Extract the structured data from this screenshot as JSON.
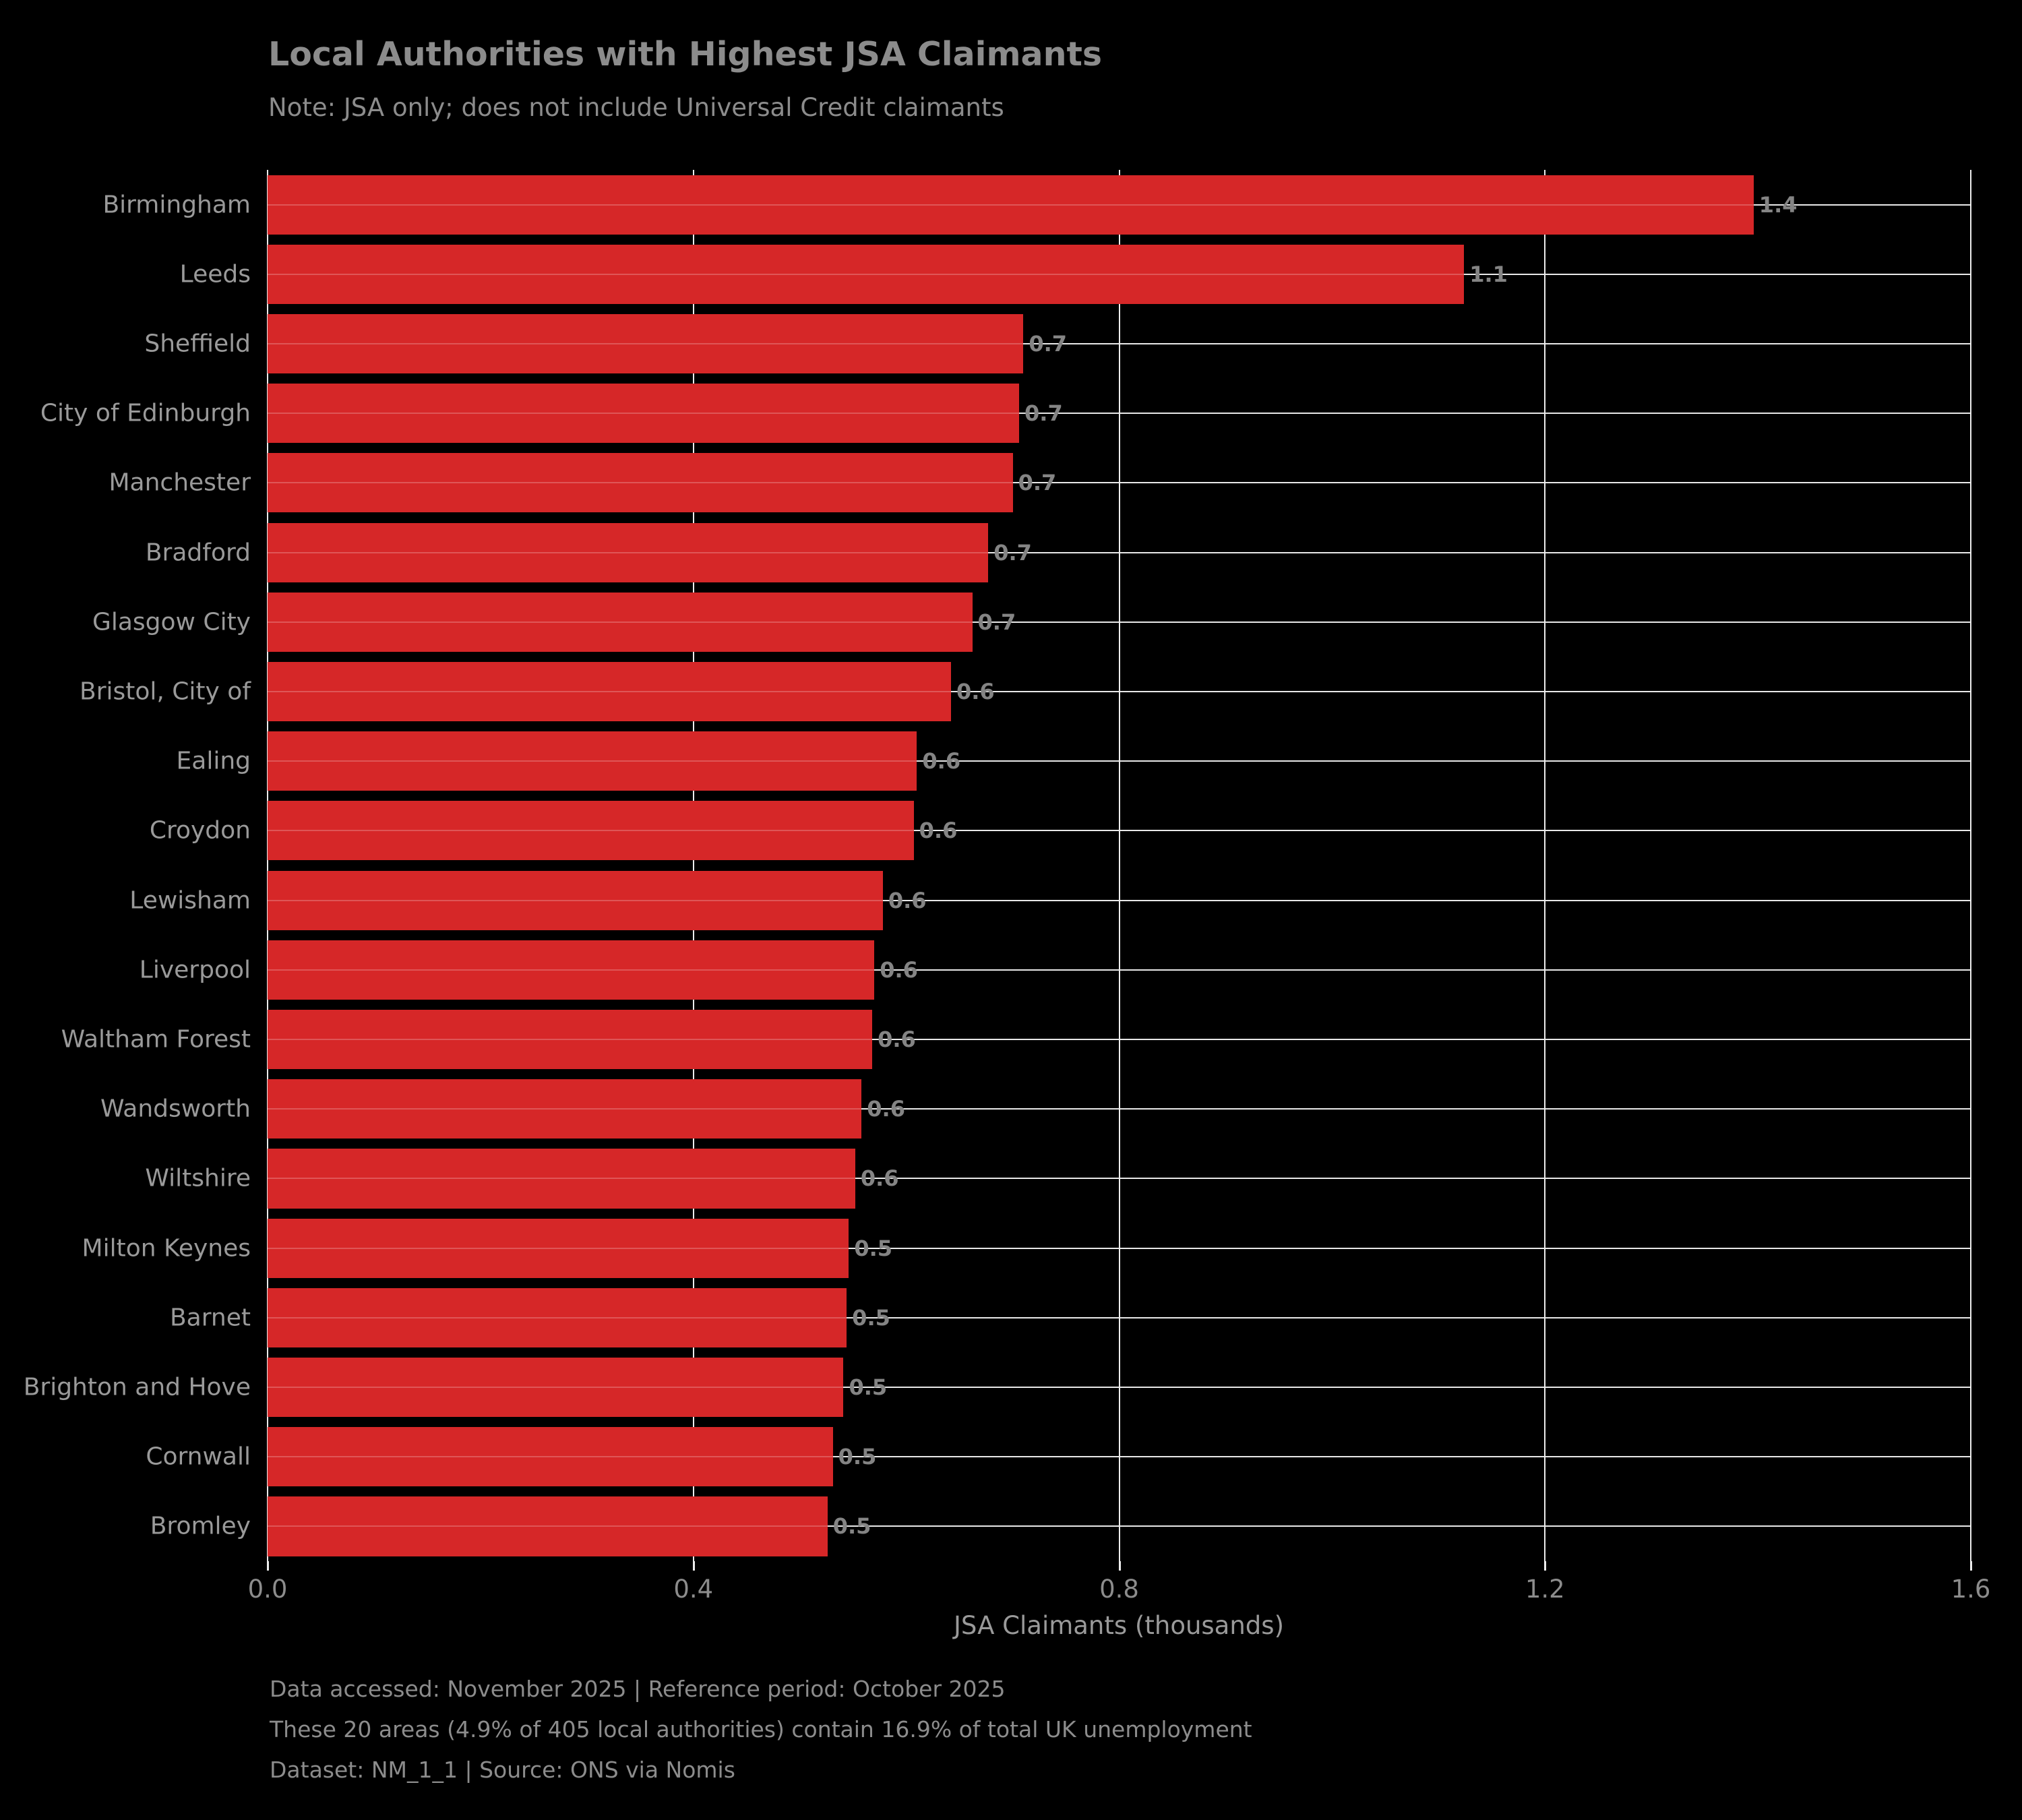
{
  "title": "Local Authorities with Highest JSA Claimants",
  "subtitle": "Note: JSA only; does not include Universal Credit claimants",
  "chart_data": {
    "type": "bar",
    "orientation": "horizontal",
    "title": "Local Authorities with Highest JSA Claimants",
    "subtitle": "Note: JSA only; does not include Universal Credit claimants",
    "xlabel": "JSA Claimants (thousands)",
    "ylabel": "",
    "xlim": [
      0,
      1.6
    ],
    "xticks": [
      0.0,
      0.4,
      0.8,
      1.2,
      1.6
    ],
    "xtick_labels": [
      "0.0",
      "0.4",
      "0.8",
      "1.2",
      "1.6"
    ],
    "grid": true,
    "background_color": "#000000",
    "bar_color": "#d62728",
    "grid_color": "#e8e8e8",
    "text_color": "#8c8c8c",
    "categories": [
      "Birmingham",
      "Leeds",
      "Sheffield",
      "City of Edinburgh",
      "Manchester",
      "Bradford",
      "Glasgow City",
      "Bristol, City of",
      "Ealing",
      "Croydon",
      "Lewisham",
      "Liverpool",
      "Waltham Forest",
      "Wandsworth",
      "Wiltshire",
      "Milton Keynes",
      "Barnet",
      "Brighton and Hove",
      "Cornwall",
      "Bromley"
    ],
    "values": [
      1.396,
      1.124,
      0.71,
      0.706,
      0.7,
      0.677,
      0.662,
      0.642,
      0.61,
      0.607,
      0.578,
      0.57,
      0.568,
      0.558,
      0.552,
      0.546,
      0.544,
      0.541,
      0.531,
      0.526
    ],
    "value_labels": [
      "1.4",
      "1.1",
      "0.7",
      "0.7",
      "0.7",
      "0.7",
      "0.7",
      "0.6",
      "0.6",
      "0.6",
      "0.6",
      "0.6",
      "0.6",
      "0.6",
      "0.6",
      "0.5",
      "0.5",
      "0.5",
      "0.5",
      "0.5"
    ]
  },
  "footer": {
    "lines": [
      "Data accessed: November 2025 | Reference period: October 2025",
      "These 20 areas (4.9% of 405 local authorities) contain 16.9% of total UK unemployment",
      "Dataset: NM_1_1 | Source: ONS via Nomis"
    ]
  }
}
